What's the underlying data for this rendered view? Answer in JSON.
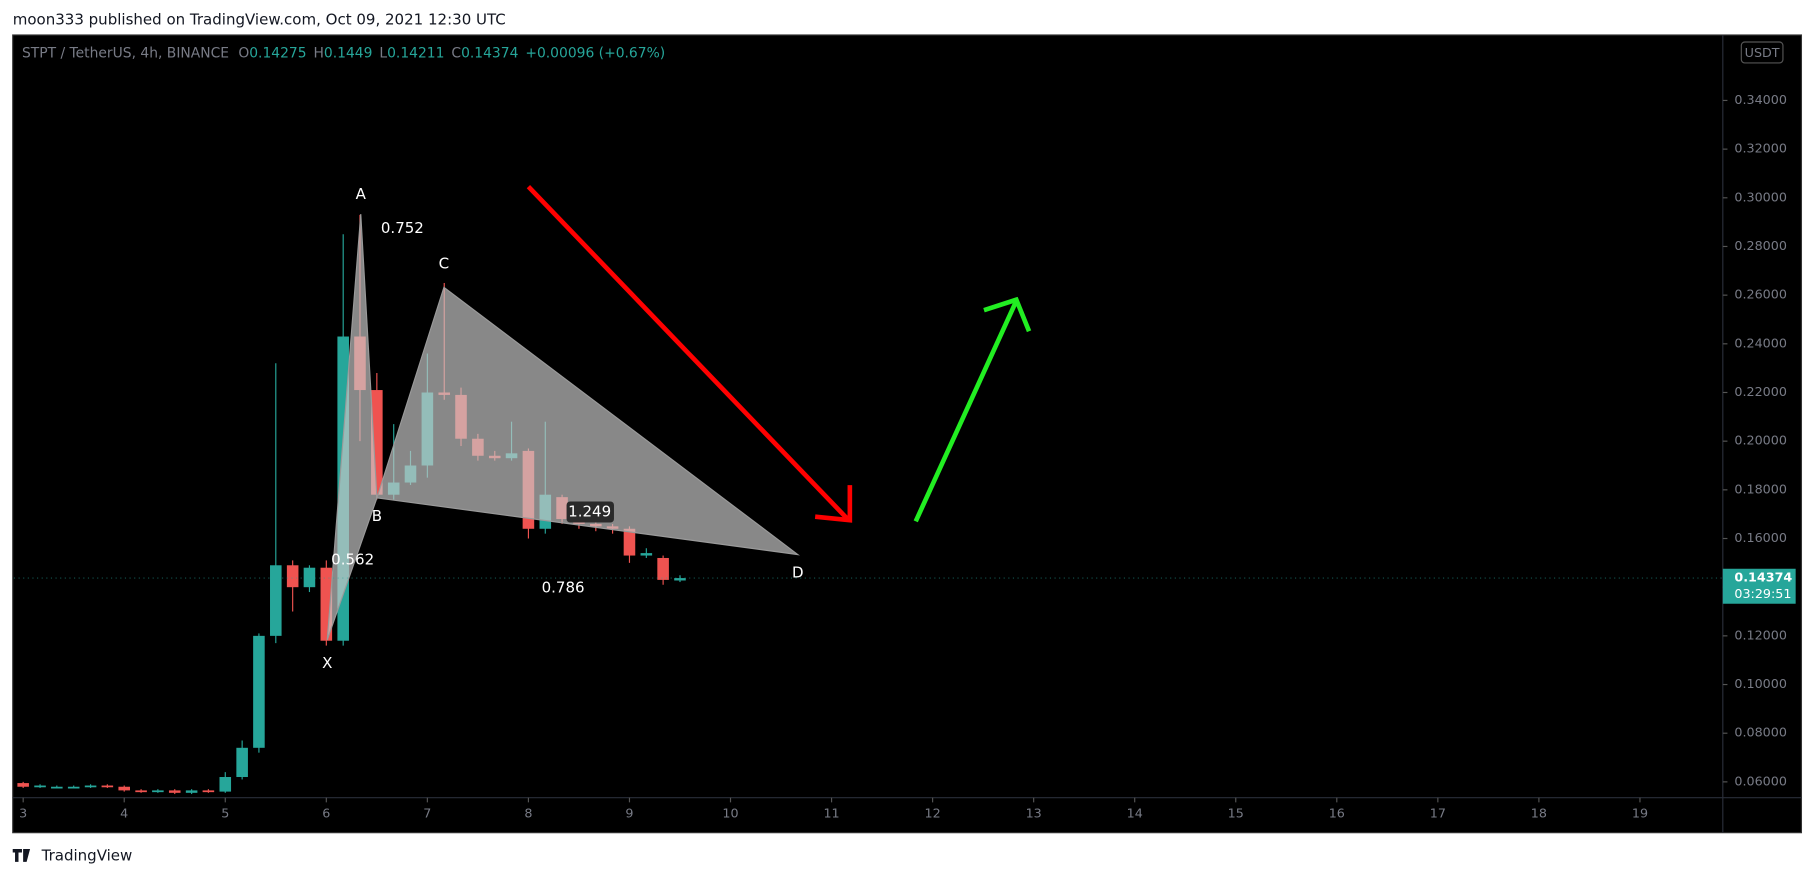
{
  "header": {
    "published": "moon333 published on TradingView.com, Oct 09, 2021 12:30 UTC"
  },
  "chart_data": {
    "type": "candlestick",
    "symbol": "STPT / TetherUS, 4h, BINANCE",
    "ohlc_prefix": [
      "O",
      "H",
      "L",
      "C"
    ],
    "change": "+0.00096 (+0.67%)",
    "currency": "USDT",
    "countdown": "03:29:51",
    "x": [
      3,
      3.167,
      3.333,
      3.5,
      3.667,
      3.833,
      4,
      4.167,
      4.333,
      4.5,
      4.667,
      4.833,
      5,
      5.167,
      5.333,
      5.5,
      5.667,
      5.833,
      6,
      6.167,
      6.333,
      6.5,
      6.667,
      6.833,
      7,
      7.167,
      7.333,
      7.5,
      7.667,
      7.833,
      8,
      8.167,
      8.333,
      8.5,
      8.667,
      8.833,
      9,
      9.167,
      9.333,
      9.5
    ],
    "open": [
      0.0595,
      0.058,
      0.058,
      0.058,
      0.058,
      0.0585,
      0.058,
      0.0565,
      0.056,
      0.0565,
      0.0555,
      0.0565,
      0.056,
      0.062,
      0.074,
      0.12,
      0.149,
      0.14,
      0.148,
      0.118,
      0.243,
      0.221,
      0.178,
      0.183,
      0.19,
      0.22,
      0.219,
      0.201,
      0.194,
      0.193,
      0.196,
      0.164,
      0.177,
      0.168,
      0.166,
      0.165,
      0.164,
      0.153,
      0.152,
      0.14275
    ],
    "high": [
      0.06,
      0.059,
      0.0585,
      0.0585,
      0.059,
      0.059,
      0.0585,
      0.057,
      0.057,
      0.057,
      0.057,
      0.057,
      0.064,
      0.077,
      0.121,
      0.232,
      0.151,
      0.149,
      0.151,
      0.285,
      0.293,
      0.228,
      0.207,
      0.196,
      0.236,
      0.265,
      0.222,
      0.203,
      0.196,
      0.208,
      0.197,
      0.208,
      0.178,
      0.169,
      0.167,
      0.166,
      0.165,
      0.156,
      0.153,
      0.1449
    ],
    "low": [
      0.0575,
      0.0575,
      0.0575,
      0.0575,
      0.0575,
      0.0575,
      0.056,
      0.0555,
      0.0555,
      0.055,
      0.055,
      0.0555,
      0.0555,
      0.061,
      0.072,
      0.117,
      0.13,
      0.138,
      0.116,
      0.116,
      0.2,
      0.176,
      0.176,
      0.182,
      0.185,
      0.217,
      0.198,
      0.192,
      0.192,
      0.192,
      0.16,
      0.162,
      0.166,
      0.164,
      0.163,
      0.162,
      0.15,
      0.152,
      0.141,
      0.14211
    ],
    "close": [
      0.058,
      0.0585,
      0.058,
      0.058,
      0.0585,
      0.058,
      0.0565,
      0.056,
      0.0565,
      0.0555,
      0.0565,
      0.056,
      0.062,
      0.074,
      0.12,
      0.149,
      0.14,
      0.148,
      0.118,
      0.243,
      0.221,
      0.178,
      0.183,
      0.19,
      0.22,
      0.219,
      0.201,
      0.194,
      0.193,
      0.195,
      0.164,
      0.178,
      0.168,
      0.166,
      0.165,
      0.164,
      0.153,
      0.154,
      0.143,
      0.14374
    ],
    "up_color": "#26a69a",
    "down_color": "#ef5350",
    "xlim": [
      2.908,
      19.82
    ],
    "xticks": [
      3,
      4,
      5,
      6,
      7,
      8,
      9,
      10,
      11,
      12,
      13,
      14,
      15,
      16,
      17,
      18,
      19
    ],
    "ylim": [
      0.0535,
      0.3669
    ],
    "yticks": [
      {
        "value": 0.06,
        "label": "0.06000"
      },
      {
        "value": 0.08,
        "label": "0.08000"
      },
      {
        "value": 0.1,
        "label": "0.10000"
      },
      {
        "value": 0.12,
        "label": "0.12000"
      },
      {
        "value": 0.14,
        "label": "0.14000"
      },
      {
        "value": 0.16,
        "label": "0.16000"
      },
      {
        "value": 0.18,
        "label": "0.18000"
      },
      {
        "value": 0.2,
        "label": "0.20000"
      },
      {
        "value": 0.22,
        "label": "0.22000"
      },
      {
        "value": 0.24,
        "label": "0.24000"
      },
      {
        "value": 0.26,
        "label": "0.26000"
      },
      {
        "value": 0.28,
        "label": "0.28000"
      },
      {
        "value": 0.3,
        "label": "0.30000"
      },
      {
        "value": 0.32,
        "label": "0.32000"
      },
      {
        "value": 0.34,
        "label": "0.34000"
      }
    ],
    "pattern": {
      "points": [
        {
          "label": "X",
          "x": 6.009,
          "y": 0.1183
        },
        {
          "label": "A",
          "x": 6.341,
          "y": 0.2933
        },
        {
          "label": "B",
          "x": 6.501,
          "y": 0.1767
        },
        {
          "label": "C",
          "x": 7.164,
          "y": 0.2632
        },
        {
          "label": "D",
          "x": 10.666,
          "y": 0.1534
        }
      ],
      "ratios": [
        "0.752",
        "0.562",
        "1.249",
        "0.786"
      ]
    }
  },
  "footer": {
    "brand": "TradingView"
  }
}
